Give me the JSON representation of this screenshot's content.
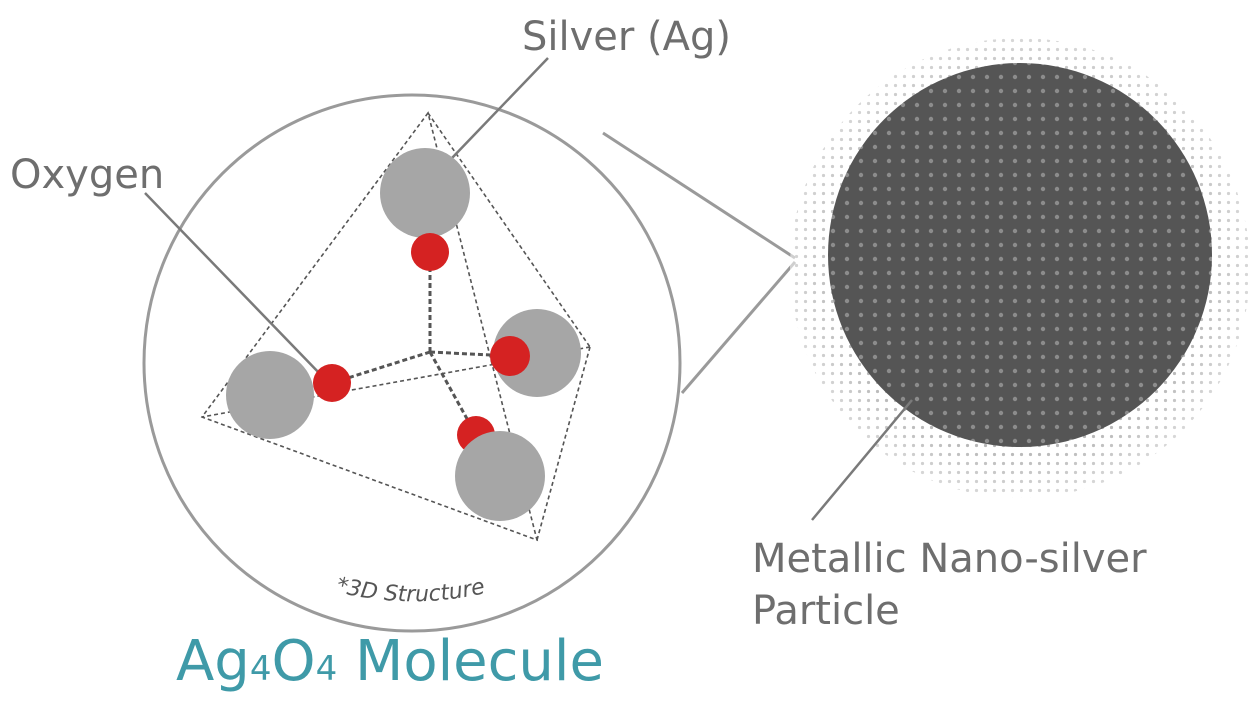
{
  "labels": {
    "silver": "Silver (Ag)",
    "oxygen": "Oxygen",
    "particle_line1": "Metallic Nano-silver",
    "particle_line2": "Particle",
    "structure_note": "*3D Structure"
  },
  "title": {
    "part1": "Ag",
    "sub1": "4",
    "part2": "O",
    "sub2": "4",
    "part3": "Molecule"
  },
  "colors": {
    "silver_atom": "#a6a6a6",
    "oxygen_atom": "#d52222",
    "outline": "#9a9a9a",
    "core": "#555555",
    "label_text": "#6e6e6e",
    "title_text": "#3f9aa8"
  }
}
